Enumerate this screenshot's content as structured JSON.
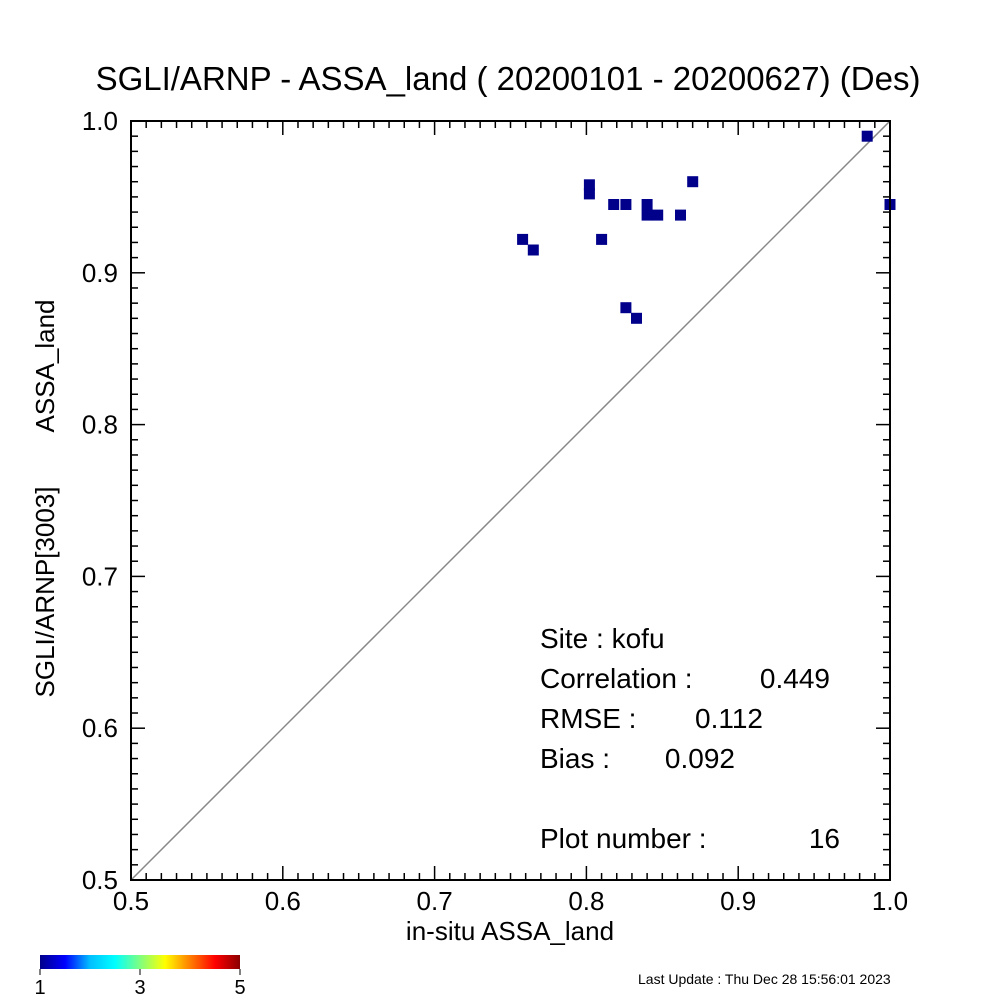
{
  "chart_data": {
    "type": "scatter",
    "title": "SGLI/ARNP - ASSA_land ( 20200101 - 20200627) (Des)",
    "xlabel": "in-situ ASSA_land",
    "ylabel_line1": "SGLI/ARNP[3003]",
    "ylabel_line2": "ASSA_land",
    "xlim": [
      0.5,
      1.0
    ],
    "ylim": [
      0.5,
      1.0
    ],
    "x_ticks": [
      "0.5",
      "0.6",
      "0.7",
      "0.8",
      "0.9",
      "1.0"
    ],
    "y_ticks": [
      "0.5",
      "0.6",
      "0.7",
      "0.8",
      "0.9",
      "1.0"
    ],
    "x_tick_values": [
      0.5,
      0.6,
      0.7,
      0.8,
      0.9,
      1.0
    ],
    "y_tick_values": [
      0.5,
      0.6,
      0.7,
      0.8,
      0.9,
      1.0
    ],
    "reference_line": "1:1",
    "reference_line_color": "#888888",
    "point_color": "#00008B",
    "points": [
      {
        "x": 0.758,
        "y": 0.922
      },
      {
        "x": 0.765,
        "y": 0.915
      },
      {
        "x": 0.802,
        "y": 0.958
      },
      {
        "x": 0.802,
        "y": 0.952
      },
      {
        "x": 0.81,
        "y": 0.922
      },
      {
        "x": 0.818,
        "y": 0.945
      },
      {
        "x": 0.826,
        "y": 0.945
      },
      {
        "x": 0.826,
        "y": 0.877
      },
      {
        "x": 0.833,
        "y": 0.87
      },
      {
        "x": 0.84,
        "y": 0.945
      },
      {
        "x": 0.84,
        "y": 0.938
      },
      {
        "x": 0.847,
        "y": 0.938
      },
      {
        "x": 0.862,
        "y": 0.938
      },
      {
        "x": 0.87,
        "y": 0.96
      },
      {
        "x": 0.985,
        "y": 0.99
      },
      {
        "x": 1.0,
        "y": 0.945
      }
    ],
    "stats": {
      "site_label": "Site : kofu",
      "correlation_label": "Correlation :",
      "correlation_value": "0.449",
      "rmse_label": "RMSE :",
      "rmse_value": "0.112",
      "bias_label": "Bias :",
      "bias_value": "0.092",
      "plot_number_label": "Plot number :",
      "plot_number_value": "16"
    },
    "colorbar": {
      "min_label": "1",
      "mid_label": "3",
      "max_label": "5",
      "colors": [
        "#00008B",
        "#0000FF",
        "#00BFFF",
        "#00FFFF",
        "#7FFF7F",
        "#FFFF00",
        "#FF7F00",
        "#FF0000",
        "#8B0000"
      ]
    },
    "grid": false,
    "last_update": "Last Update : Thu Dec 28 15:56:01 2023"
  }
}
